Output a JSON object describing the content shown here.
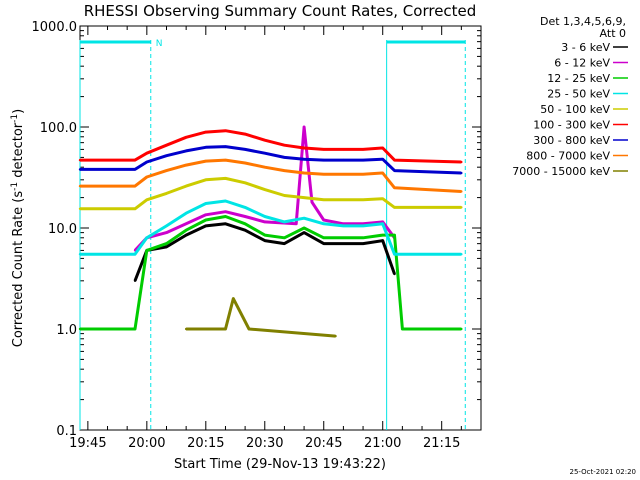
{
  "chart_data": {
    "type": "line",
    "title": "RHESSI Observing Summary Count Rates, Corrected",
    "xlabel": "Start Time (29-Nov-13 19:43:22)",
    "ylabel_main": "Corrected Count Rate (s",
    "ylabel_sup1": "-1",
    "ylabel_mid": " detector",
    "ylabel_sup2": "-1",
    "ylabel_end": ")",
    "yscale": "log",
    "ylim": [
      0.1,
      1000
    ],
    "xlim": [
      "19:43",
      "21:25"
    ],
    "x_tick_labels": [
      "19:45",
      "20:00",
      "20:15",
      "20:30",
      "20:45",
      "21:00",
      "21:15"
    ],
    "x_tick_minutes": [
      1185,
      1200,
      1215,
      1230,
      1245,
      1260,
      1275
    ],
    "y_tick_labels": [
      "0.1",
      "1.0",
      "10.0",
      "100.0",
      "1000.0"
    ],
    "y_tick_values": [
      0.1,
      1,
      10,
      100,
      1000
    ],
    "legend_header": [
      "Det 1,3,4,5,6,9,",
      "Att 0"
    ],
    "legend_position": "right-outside",
    "timestamp": "25-Oct-2021 02:20",
    "night_markers": [
      {
        "start": "19:43",
        "end": "20:01",
        "label": "N"
      },
      {
        "start": "21:01",
        "end": "21:21",
        "label": ""
      }
    ],
    "night_marker_vlines": [
      "19:43",
      "20:01",
      "21:01",
      "21:21"
    ],
    "series": [
      {
        "name": "3 - 6 keV",
        "color": "#000000",
        "x": [
          "19:57",
          "20:00",
          "20:05",
          "20:10",
          "20:15",
          "20:20",
          "20:25",
          "20:30",
          "20:35",
          "20:40",
          "20:45",
          "20:50",
          "20:55",
          "21:00",
          "21:03"
        ],
        "values": [
          3.0,
          6.0,
          6.5,
          8.5,
          10.5,
          11.0,
          9.5,
          7.5,
          7.0,
          9.0,
          7.0,
          7.0,
          7.0,
          7.5,
          3.5
        ]
      },
      {
        "name": "6 - 12 keV",
        "color": "#cc00cc",
        "x": [
          "19:57",
          "20:00",
          "20:05",
          "20:10",
          "20:15",
          "20:20",
          "20:25",
          "20:30",
          "20:38",
          "20:40",
          "20:42",
          "20:45",
          "20:50",
          "20:55",
          "21:00",
          "21:03"
        ],
        "values": [
          6.0,
          8.0,
          9.0,
          11.0,
          13.5,
          14.5,
          13.0,
          11.5,
          11.0,
          100.0,
          18.0,
          12.0,
          11.0,
          11.0,
          11.5,
          8.0
        ]
      },
      {
        "name": "12 - 25 keV",
        "color": "#00cc00",
        "x": [
          "19:43",
          "19:57",
          "20:00",
          "20:05",
          "20:10",
          "20:15",
          "20:20",
          "20:25",
          "20:30",
          "20:35",
          "20:40",
          "20:45",
          "20:50",
          "20:55",
          "21:00",
          "21:03",
          "21:05",
          "21:20"
        ],
        "values": [
          1.0,
          1.0,
          6.0,
          7.0,
          9.5,
          12.0,
          13.0,
          11.0,
          8.5,
          8.0,
          10.0,
          8.0,
          8.0,
          8.0,
          8.5,
          8.5,
          1.0,
          1.0
        ]
      },
      {
        "name": "25 - 50 keV",
        "color": "#00e5e5",
        "x": [
          "19:43",
          "19:57",
          "20:00",
          "20:05",
          "20:10",
          "20:15",
          "20:20",
          "20:25",
          "20:30",
          "20:35",
          "20:40",
          "20:45",
          "20:50",
          "20:55",
          "21:00",
          "21:03",
          "21:20"
        ],
        "values": [
          5.5,
          5.5,
          8.0,
          10.5,
          14.0,
          17.5,
          18.5,
          16.0,
          13.0,
          11.5,
          12.5,
          11.0,
          10.5,
          10.5,
          11.0,
          5.5,
          5.5
        ]
      },
      {
        "name": "50 - 100 keV",
        "color": "#cccc00",
        "x": [
          "19:43",
          "19:57",
          "20:00",
          "20:05",
          "20:10",
          "20:15",
          "20:20",
          "20:25",
          "20:30",
          "20:35",
          "20:40",
          "20:45",
          "20:50",
          "20:55",
          "21:00",
          "21:03",
          "21:20"
        ],
        "values": [
          15.5,
          15.5,
          19.0,
          22.0,
          26.0,
          30.0,
          31.0,
          28.0,
          24.0,
          21.0,
          20.0,
          19.0,
          19.0,
          19.0,
          19.5,
          16.0,
          16.0
        ]
      },
      {
        "name": "100 - 300 keV",
        "color": "#ff0000",
        "x": [
          "19:43",
          "19:57",
          "20:00",
          "20:05",
          "20:10",
          "20:15",
          "20:20",
          "20:25",
          "20:30",
          "20:35",
          "20:40",
          "20:45",
          "20:50",
          "20:55",
          "21:00",
          "21:03",
          "21:20"
        ],
        "values": [
          47.0,
          47.0,
          55.0,
          66.0,
          79.0,
          89.0,
          92.0,
          85.0,
          74.0,
          66.0,
          62.0,
          60.0,
          60.0,
          60.0,
          62.0,
          47.0,
          45.0
        ]
      },
      {
        "name": "300 - 800 keV",
        "color": "#0000cc",
        "x": [
          "19:43",
          "19:57",
          "20:00",
          "20:05",
          "20:10",
          "20:15",
          "20:20",
          "20:25",
          "20:30",
          "20:35",
          "20:40",
          "20:45",
          "20:50",
          "20:55",
          "21:00",
          "21:03",
          "21:20"
        ],
        "values": [
          38.0,
          38.0,
          45.0,
          52.0,
          58.0,
          63.0,
          64.0,
          60.0,
          55.0,
          50.0,
          48.0,
          47.0,
          47.0,
          47.0,
          48.0,
          37.0,
          35.0
        ]
      },
      {
        "name": "800 - 7000 keV",
        "color": "#ff7700",
        "x": [
          "19:43",
          "19:57",
          "20:00",
          "20:05",
          "20:10",
          "20:15",
          "20:20",
          "20:25",
          "20:30",
          "20:35",
          "20:40",
          "20:45",
          "20:50",
          "20:55",
          "21:00",
          "21:03",
          "21:20"
        ],
        "values": [
          26.0,
          26.0,
          32.0,
          37.0,
          42.0,
          46.0,
          47.0,
          44.0,
          40.0,
          37.0,
          35.0,
          34.0,
          34.0,
          34.0,
          35.0,
          25.0,
          23.0
        ]
      },
      {
        "name": "7000 - 15000 keV",
        "color": "#808000",
        "x": [
          "20:10",
          "20:15",
          "20:20",
          "20:22",
          "20:26",
          "20:48"
        ],
        "values": [
          1.0,
          1.0,
          1.0,
          2.0,
          1.0,
          0.85
        ]
      }
    ]
  }
}
